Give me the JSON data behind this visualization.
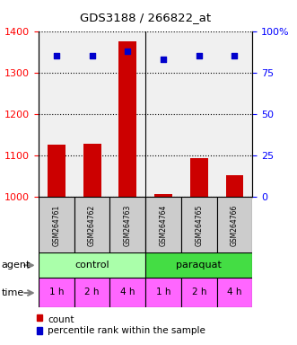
{
  "title": "GDS3188 / 266822_at",
  "samples": [
    "GSM264761",
    "GSM264762",
    "GSM264763",
    "GSM264764",
    "GSM264765",
    "GSM264766"
  ],
  "counts": [
    1125,
    1128,
    1375,
    1007,
    1093,
    1052
  ],
  "percentile_ranks": [
    85,
    85,
    88,
    83,
    85,
    85
  ],
  "ylim_left": [
    1000,
    1400
  ],
  "ylim_right": [
    0,
    100
  ],
  "yticks_left": [
    1000,
    1100,
    1200,
    1300,
    1400
  ],
  "yticks_right": [
    0,
    25,
    50,
    75,
    100
  ],
  "bar_color": "#cc0000",
  "dot_color": "#0000cc",
  "agent_labels": [
    "control",
    "paraquat"
  ],
  "agent_colors": [
    "#aaffaa",
    "#44dd44"
  ],
  "time_labels": [
    "1 h",
    "2 h",
    "4 h",
    "1 h",
    "2 h",
    "4 h"
  ],
  "time_color": "#ff66ff",
  "sample_box_color": "#cccccc",
  "background_color": "#ffffff",
  "chart_bg_color": "#f0f0f0"
}
